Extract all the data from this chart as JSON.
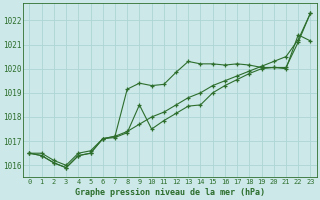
{
  "x": [
    0,
    1,
    2,
    3,
    4,
    5,
    6,
    7,
    8,
    9,
    10,
    11,
    12,
    13,
    14,
    15,
    16,
    17,
    18,
    19,
    20,
    21,
    22,
    23
  ],
  "line_straight": [
    1016.5,
    1016.5,
    1016.2,
    1016.0,
    1016.5,
    1016.6,
    1017.1,
    1017.2,
    1017.4,
    1017.7,
    1018.0,
    1018.2,
    1018.5,
    1018.8,
    1019.0,
    1019.3,
    1019.5,
    1019.7,
    1019.9,
    1020.1,
    1020.3,
    1020.5,
    1021.2,
    1022.3
  ],
  "line_bumpy": [
    1016.5,
    1016.4,
    1016.1,
    1015.9,
    1016.4,
    1016.5,
    1017.1,
    1017.2,
    1019.15,
    1019.4,
    1019.3,
    1019.35,
    1019.85,
    1020.3,
    1020.2,
    1020.2,
    1020.15,
    1020.2,
    1020.15,
    1020.05,
    1020.05,
    1020.0,
    1021.4,
    1021.15
  ],
  "line_upper": [
    1016.5,
    1016.4,
    1016.1,
    1015.9,
    1016.4,
    1016.5,
    1017.1,
    1017.15,
    1017.35,
    1018.5,
    1017.5,
    1017.85,
    1018.15,
    1018.45,
    1018.5,
    1019.0,
    1019.3,
    1019.55,
    1019.8,
    1020.0,
    1020.05,
    1020.05,
    1021.1,
    1022.3
  ],
  "line_color": "#2d6e2d",
  "bg_color": "#cce8e8",
  "grid_color": "#aed4d4",
  "xlabel": "Graphe pression niveau de la mer (hPa)",
  "ylim": [
    1015.5,
    1022.7
  ],
  "yticks": [
    1016,
    1017,
    1018,
    1019,
    1020,
    1021,
    1022
  ],
  "xticks": [
    0,
    1,
    2,
    3,
    4,
    5,
    6,
    7,
    8,
    9,
    10,
    11,
    12,
    13,
    14,
    15,
    16,
    17,
    18,
    19,
    20,
    21,
    22,
    23
  ]
}
